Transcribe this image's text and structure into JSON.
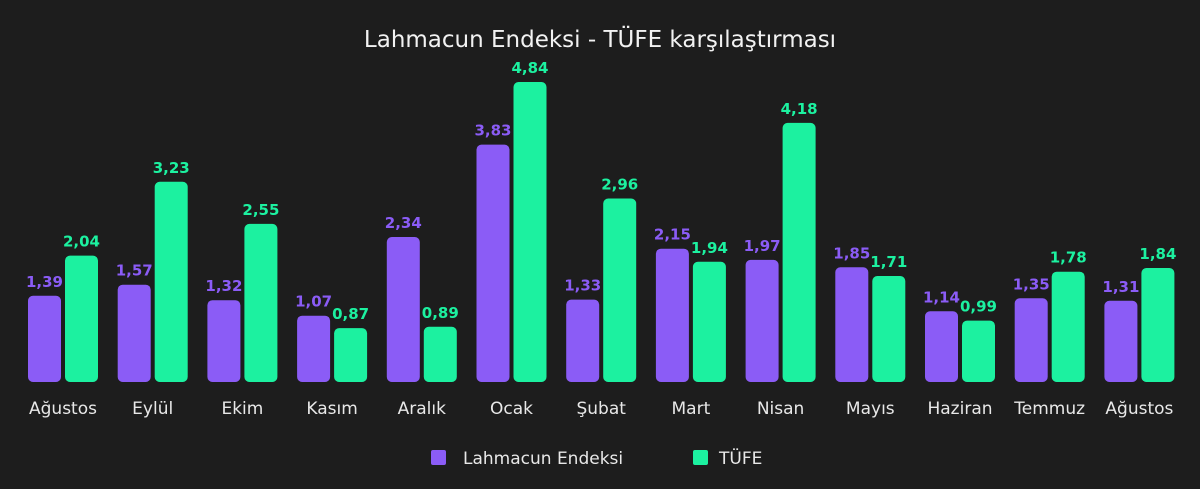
{
  "chart_data": {
    "type": "bar",
    "title": "Lahmacun Endeksi - TÜFE karşılaştırması",
    "categories": [
      "Ağustos",
      "Eylül",
      "Ekim",
      "Kasım",
      "Aralık",
      "Ocak",
      "Şubat",
      "Mart",
      "Nisan",
      "Mayıs",
      "Haziran",
      "Temmuz",
      "Ağustos"
    ],
    "series": [
      {
        "name": "Lahmacun Endeksi",
        "color": "#8b5cf6",
        "values": [
          1.39,
          1.57,
          1.32,
          1.07,
          2.34,
          3.83,
          1.33,
          2.15,
          1.97,
          1.85,
          1.14,
          1.35,
          1.31
        ],
        "labels": [
          "1,39",
          "1,57",
          "1,32",
          "1,07",
          "2,34",
          "3,83",
          "1,33",
          "2,15",
          "1,97",
          "1,85",
          "1,14",
          "1,35",
          "1,31"
        ]
      },
      {
        "name": "TÜFE",
        "color": "#1cf1a0",
        "values": [
          2.04,
          3.23,
          2.55,
          0.87,
          0.89,
          4.84,
          2.96,
          1.94,
          4.18,
          1.71,
          0.99,
          1.78,
          1.84
        ],
        "labels": [
          "2,04",
          "3,23",
          "2,55",
          "0,87",
          "0,89",
          "4,84",
          "2,96",
          "1,94",
          "4,18",
          "1,71",
          "0,99",
          "1,78",
          "1,84"
        ]
      }
    ],
    "ylim": [
      0,
      4.84
    ],
    "grid": false,
    "legend_position": "bottom"
  }
}
